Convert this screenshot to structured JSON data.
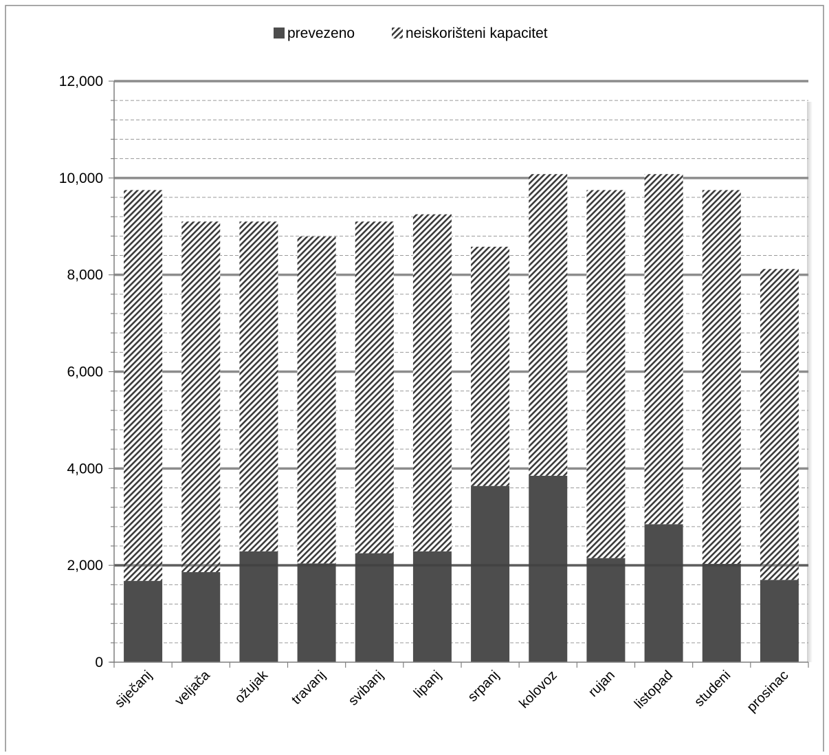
{
  "chart_data": {
    "type": "bar",
    "stacked": true,
    "categories": [
      "siječanj",
      "veljača",
      "ožujak",
      "travanj",
      "svibanj",
      "lipanj",
      "srpanj",
      "kolovoz",
      "rujan",
      "listopad",
      "studeni",
      "prosinac"
    ],
    "series": [
      {
        "name": "prevezeno",
        "values": [
          1680,
          1860,
          2290,
          2040,
          2250,
          2290,
          3640,
          3850,
          2150,
          2850,
          2030,
          1700
        ],
        "color": "#4d4d4d",
        "pattern": "solid"
      },
      {
        "name": "neiskorišteni kapacitet",
        "values": [
          8070,
          7240,
          6810,
          6750,
          6850,
          6960,
          4940,
          6230,
          7600,
          7230,
          7720,
          6420
        ],
        "color": "#4d4d4d",
        "pattern": "diagonal-hatch"
      }
    ],
    "ylim": [
      0,
      12000
    ],
    "yticks": [
      0,
      2000,
      4000,
      6000,
      8000,
      10000,
      12000
    ],
    "ytick_labels": [
      "0",
      "2,000",
      "4,000",
      "6,000",
      "8,000",
      "10,000",
      "12,000"
    ],
    "minor_grid_step": 400,
    "grid": true,
    "legend_position": "top",
    "xlabel": "",
    "ylabel": "",
    "title": ""
  }
}
